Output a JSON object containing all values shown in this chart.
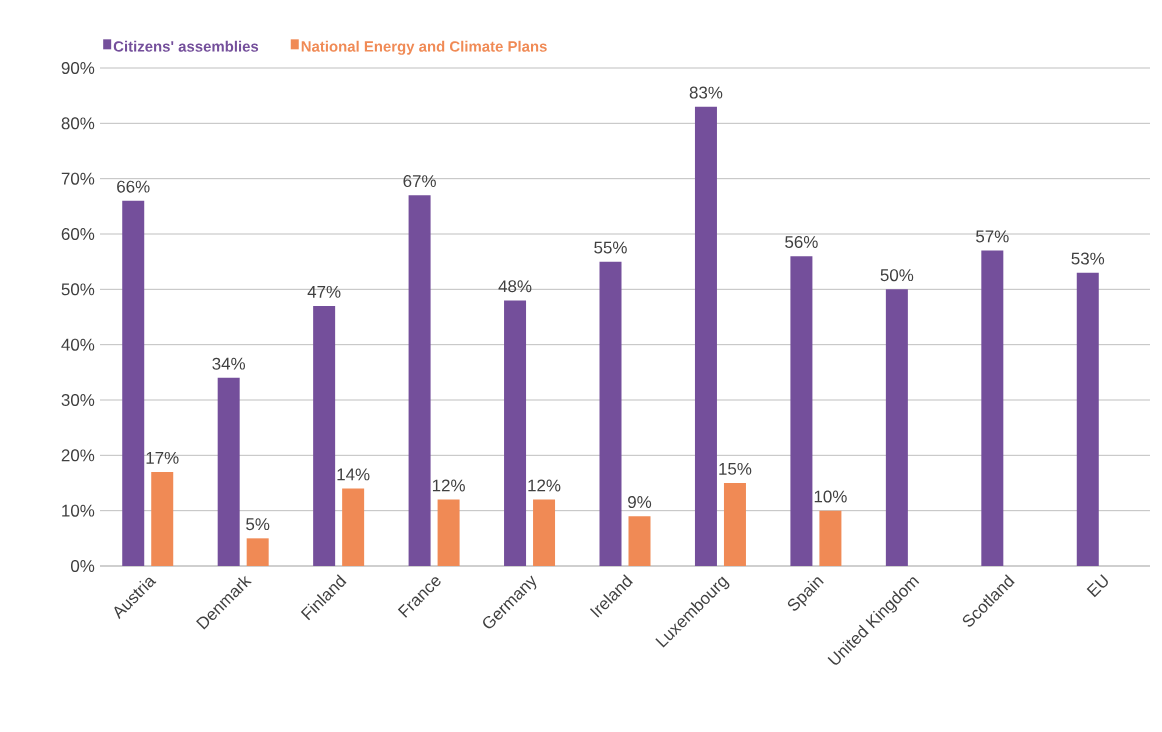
{
  "chart_data": {
    "type": "bar",
    "categories": [
      "Austria",
      "Denmark",
      "Finland",
      "France",
      "Germany",
      "Ireland",
      "Luxembourg",
      "Spain",
      "United Kingdom",
      "Scotland",
      "EU"
    ],
    "series": [
      {
        "name": "Citizens' assemblies",
        "color": "#744f9b",
        "values": [
          66,
          34,
          47,
          67,
          48,
          55,
          83,
          56,
          50,
          57,
          53
        ],
        "value_labels": [
          "66%",
          "34%",
          "47%",
          "67%",
          "48%",
          "55%",
          "83%",
          "56%",
          "50%",
          "57%",
          "53%"
        ]
      },
      {
        "name": "National Energy and Climate Plans",
        "color": "#f08a55",
        "values": [
          17,
          5,
          14,
          12,
          12,
          9,
          15,
          10,
          null,
          null,
          null
        ],
        "value_labels": [
          "17%",
          "5%",
          "14%",
          "12%",
          "12%",
          "9%",
          "15%",
          "10%",
          null,
          null,
          null
        ]
      }
    ],
    "ylim": [
      0,
      90
    ],
    "yticks": [
      {
        "value": 0,
        "label": "0%"
      },
      {
        "value": 10,
        "label": "10%"
      },
      {
        "value": 20,
        "label": "20%"
      },
      {
        "value": 30,
        "label": "30%"
      },
      {
        "value": 40,
        "label": "40%"
      },
      {
        "value": 50,
        "label": "50%"
      },
      {
        "value": 60,
        "label": "60%"
      },
      {
        "value": 70,
        "label": "70%"
      },
      {
        "value": 80,
        "label": "80%"
      },
      {
        "value": 90,
        "label": "90%"
      }
    ],
    "grid": "y",
    "legend": "top left"
  }
}
